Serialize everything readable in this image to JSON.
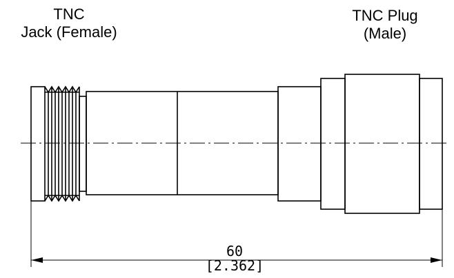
{
  "labels": {
    "left_line1": "TNC",
    "left_line2": "Jack (Female)",
    "right_line1": "TNC Plug",
    "right_line2": "(Male)"
  },
  "dimension": {
    "mm": "60",
    "inch": "[2.362]"
  }
}
